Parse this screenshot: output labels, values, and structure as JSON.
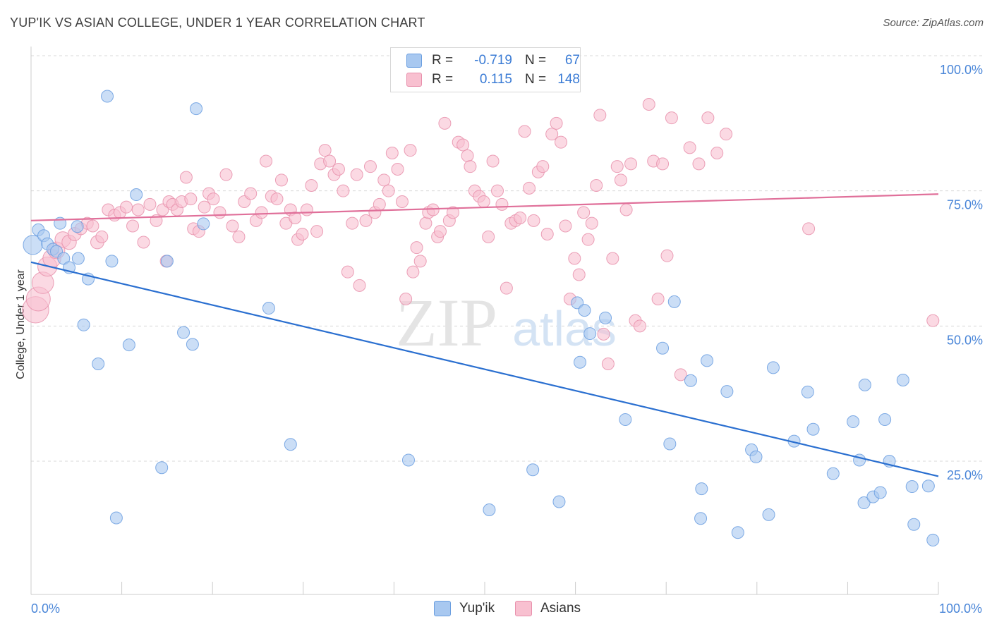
{
  "title": "YUP'IK VS ASIAN COLLEGE, UNDER 1 YEAR CORRELATION CHART",
  "source": "Source: ZipAtlas.com",
  "watermark": {
    "zip": "ZIP",
    "atlas": "atlas"
  },
  "legend": {
    "rows": [
      {
        "r_label": "R =",
        "r_value": "-0.719",
        "n_label": "N =",
        "n_value": "67",
        "color": "#a8c8f0",
        "border": "#6a9ee0"
      },
      {
        "r_label": "R =",
        "r_value": "0.115",
        "n_label": "N =",
        "n_value": "148",
        "color": "#f8c0d0",
        "border": "#e890ac"
      }
    ]
  },
  "bottom_legend": [
    {
      "label": "Yup'ik",
      "color": "#a8c8f0",
      "border": "#6a9ee0"
    },
    {
      "label": "Asians",
      "color": "#f8c0d0",
      "border": "#e890ac"
    }
  ],
  "chart_data": {
    "type": "scatter",
    "title": "YUP'IK VS ASIAN COLLEGE, UNDER 1 YEAR CORRELATION CHART",
    "xlabel": "",
    "ylabel": "College, Under 1 year",
    "xlim": [
      0,
      100
    ],
    "ylim": [
      0,
      105
    ],
    "x_tick_labels": [
      {
        "value": 0,
        "label": "0.0%"
      },
      {
        "value": 100,
        "label": "100.0%"
      }
    ],
    "y_tick_labels": [
      {
        "value": 25,
        "label": "25.0%"
      },
      {
        "value": 50,
        "label": "50.0%"
      },
      {
        "value": 75,
        "label": "75.0%"
      },
      {
        "value": 100,
        "label": "100.0%"
      }
    ],
    "grid": true,
    "legend_position": "top-center",
    "series": [
      {
        "name": "Yup'ik",
        "color": "#6a9ee0",
        "fill": "#a8c8f0",
        "trend": {
          "x": [
            0,
            100
          ],
          "y": [
            61.8,
            22.2
          ],
          "color": "#2a6fd0"
        },
        "points": [
          [
            0.2,
            65,
            1.6
          ],
          [
            0.8,
            67.8,
            1
          ],
          [
            1.4,
            66.7,
            1
          ],
          [
            1.8,
            65.2,
            1
          ],
          [
            2.4,
            64.2,
            1
          ],
          [
            2.8,
            63.8,
            1
          ],
          [
            3.2,
            69,
            1
          ],
          [
            3.6,
            62.5,
            1
          ],
          [
            4.2,
            60.8,
            1
          ],
          [
            5.2,
            62.5,
            1
          ],
          [
            6.3,
            58.7,
            1
          ],
          [
            5.1,
            68.4,
            1
          ],
          [
            5.8,
            50.2,
            1
          ],
          [
            7.4,
            43,
            1
          ],
          [
            8.4,
            92.5,
            1
          ],
          [
            8.9,
            62,
            1
          ],
          [
            9.4,
            14.5,
            1
          ],
          [
            10.8,
            46.5,
            1
          ],
          [
            11.6,
            74.3,
            1
          ],
          [
            14.4,
            23.8,
            1
          ],
          [
            15,
            62,
            1
          ],
          [
            16.8,
            48.8,
            1
          ],
          [
            17.8,
            46.6,
            1
          ],
          [
            18.2,
            90.2,
            1
          ],
          [
            19,
            68.9,
            1
          ],
          [
            26.2,
            53.3,
            1
          ],
          [
            28.6,
            28.1,
            1
          ],
          [
            41.6,
            25.2,
            1
          ],
          [
            50.5,
            16,
            1
          ],
          [
            55.3,
            23.4,
            1
          ],
          [
            58.2,
            17.5,
            1
          ],
          [
            60.2,
            54.3,
            1
          ],
          [
            60.5,
            43.3,
            1
          ],
          [
            61,
            52.9,
            1
          ],
          [
            61.6,
            48.6,
            1
          ],
          [
            63.3,
            51.5,
            1
          ],
          [
            65.5,
            32.7,
            1
          ],
          [
            69.6,
            45.9,
            1
          ],
          [
            70.4,
            28.2,
            1
          ],
          [
            70.9,
            54.5,
            1
          ],
          [
            72.7,
            39.9,
            1
          ],
          [
            73.9,
            19.9,
            1
          ],
          [
            73.8,
            14.4,
            1
          ],
          [
            74.5,
            43.6,
            1
          ],
          [
            76.7,
            37.9,
            1
          ],
          [
            77.9,
            11.8,
            1
          ],
          [
            79.4,
            27.1,
            1
          ],
          [
            79.9,
            25.8,
            1
          ],
          [
            81.3,
            15.1,
            1
          ],
          [
            81.8,
            42.3,
            1
          ],
          [
            84.1,
            28.7,
            1
          ],
          [
            85.6,
            37.8,
            1
          ],
          [
            86.2,
            30.9,
            1
          ],
          [
            88.4,
            22.7,
            1
          ],
          [
            90.6,
            32.3,
            1
          ],
          [
            91.3,
            25.2,
            1
          ],
          [
            91.8,
            17.3,
            1
          ],
          [
            91.9,
            39.1,
            1
          ],
          [
            92.8,
            18.4,
            1
          ],
          [
            93.6,
            19.2,
            1
          ],
          [
            94.1,
            32.7,
            1
          ],
          [
            94.6,
            25,
            1
          ],
          [
            96.1,
            40,
            1
          ],
          [
            97.1,
            20.3,
            1
          ],
          [
            97.3,
            13.3,
            1
          ],
          [
            98.9,
            20.4,
            1
          ],
          [
            99.4,
            10.4,
            1
          ]
        ]
      },
      {
        "name": "Asians",
        "color": "#e890ac",
        "fill": "#f8c0d0",
        "trend": {
          "x": [
            0,
            100
          ],
          "y": [
            69.5,
            74.4
          ],
          "color": "#e0709a"
        },
        "points": [
          [
            0.5,
            53,
            2.2
          ],
          [
            0.8,
            55,
            2.0
          ],
          [
            1.3,
            58,
            1.8
          ],
          [
            1.8,
            61,
            1.6
          ],
          [
            2.3,
            62.5,
            1.5
          ],
          [
            2.8,
            64,
            1.4
          ],
          [
            3.5,
            66,
            1.3
          ],
          [
            4.2,
            65.5,
            1.2
          ],
          [
            4.8,
            67,
            1.1
          ],
          [
            5.5,
            68,
            1
          ],
          [
            6.2,
            69,
            1
          ],
          [
            6.8,
            68.5,
            1
          ],
          [
            7.3,
            65.5,
            1.1
          ],
          [
            7.8,
            66.5,
            1
          ],
          [
            8.5,
            71.5,
            1
          ],
          [
            9.2,
            70.5,
            1
          ],
          [
            9.8,
            71,
            1
          ],
          [
            10.5,
            72,
            1
          ],
          [
            11.2,
            68.5,
            1
          ],
          [
            11.8,
            71.5,
            1
          ],
          [
            12.4,
            65.5,
            1
          ],
          [
            13.1,
            72.5,
            1
          ],
          [
            13.8,
            69.5,
            1
          ],
          [
            14.5,
            71.5,
            1
          ],
          [
            14.9,
            62,
            1
          ],
          [
            15.2,
            73,
            1
          ],
          [
            15.6,
            72.5,
            1
          ],
          [
            16.1,
            71.5,
            1
          ],
          [
            16.6,
            73,
            1
          ],
          [
            17.1,
            77.5,
            1
          ],
          [
            17.6,
            73.5,
            1
          ],
          [
            17.9,
            68,
            1
          ],
          [
            18.5,
            67.5,
            1
          ],
          [
            19.1,
            72,
            1
          ],
          [
            19.6,
            74.5,
            1
          ],
          [
            20.1,
            73.5,
            1
          ],
          [
            20.8,
            71,
            1
          ],
          [
            21.5,
            78,
            1
          ],
          [
            22.2,
            68.5,
            1
          ],
          [
            22.9,
            66.5,
            1
          ],
          [
            23.5,
            73,
            1
          ],
          [
            24.2,
            74.5,
            1
          ],
          [
            24.8,
            69.5,
            1
          ],
          [
            25.4,
            71,
            1
          ],
          [
            25.9,
            80.5,
            1
          ],
          [
            26.5,
            74,
            1
          ],
          [
            27.1,
            73.5,
            1
          ],
          [
            27.6,
            77,
            1
          ],
          [
            28.1,
            69,
            1
          ],
          [
            28.6,
            71.5,
            1
          ],
          [
            29.1,
            70,
            1
          ],
          [
            29.4,
            66,
            1
          ],
          [
            29.9,
            67,
            1
          ],
          [
            30.4,
            71.5,
            1
          ],
          [
            30.9,
            76,
            1
          ],
          [
            31.5,
            67.5,
            1
          ],
          [
            31.9,
            80,
            1
          ],
          [
            32.4,
            82.5,
            1
          ],
          [
            32.9,
            80.5,
            1
          ],
          [
            33.4,
            78,
            1
          ],
          [
            33.9,
            79,
            1
          ],
          [
            34.4,
            75,
            1
          ],
          [
            34.9,
            60,
            1
          ],
          [
            35.4,
            69,
            1
          ],
          [
            35.9,
            78,
            1
          ],
          [
            36.2,
            57.5,
            1
          ],
          [
            36.9,
            69.5,
            1
          ],
          [
            37.4,
            79.5,
            1
          ],
          [
            37.9,
            71,
            1
          ],
          [
            38.4,
            72.5,
            1
          ],
          [
            38.9,
            77,
            1
          ],
          [
            39.4,
            75,
            1
          ],
          [
            39.8,
            82,
            1
          ],
          [
            40.4,
            79,
            1
          ],
          [
            40.9,
            73,
            1
          ],
          [
            41.3,
            55,
            1
          ],
          [
            41.8,
            82.5,
            1
          ],
          [
            42.1,
            60,
            1
          ],
          [
            42.5,
            64.5,
            1
          ],
          [
            42.9,
            62,
            1
          ],
          [
            43.5,
            69,
            1
          ],
          [
            43.8,
            71,
            1
          ],
          [
            44.3,
            71.5,
            1
          ],
          [
            44.8,
            66.5,
            1
          ],
          [
            45.1,
            67.5,
            1
          ],
          [
            45.6,
            87.5,
            1
          ],
          [
            46.1,
            69.5,
            1
          ],
          [
            46.5,
            71,
            1
          ],
          [
            47.1,
            84,
            1
          ],
          [
            47.6,
            83.5,
            1
          ],
          [
            48.1,
            81.5,
            1
          ],
          [
            48.4,
            79.5,
            1
          ],
          [
            48.9,
            75,
            1
          ],
          [
            49.4,
            74,
            1
          ],
          [
            49.9,
            73,
            1
          ],
          [
            50.4,
            66.5,
            1
          ],
          [
            50.9,
            80.5,
            1
          ],
          [
            51.4,
            75,
            1
          ],
          [
            51.9,
            72.5,
            1
          ],
          [
            52.4,
            57,
            1
          ],
          [
            52.9,
            69,
            1
          ],
          [
            53.4,
            69.5,
            1
          ],
          [
            53.9,
            70,
            1
          ],
          [
            54.4,
            86,
            1
          ],
          [
            54.9,
            75.5,
            1
          ],
          [
            55.4,
            69.5,
            1
          ],
          [
            55.9,
            78.5,
            1
          ],
          [
            56.4,
            79.5,
            1
          ],
          [
            56.9,
            67,
            1
          ],
          [
            57.4,
            85.5,
            1
          ],
          [
            57.9,
            87.5,
            1
          ],
          [
            58.4,
            84,
            1
          ],
          [
            58.9,
            68.5,
            1
          ],
          [
            59.4,
            55,
            1
          ],
          [
            59.9,
            62.5,
            1
          ],
          [
            60.4,
            59.5,
            1
          ],
          [
            60.9,
            71,
            1
          ],
          [
            61.4,
            66,
            1
          ],
          [
            61.8,
            69,
            1
          ],
          [
            62.3,
            76,
            1
          ],
          [
            62.7,
            89,
            1
          ],
          [
            63.1,
            48.5,
            1
          ],
          [
            63.6,
            43,
            1
          ],
          [
            64.1,
            62.5,
            1
          ],
          [
            64.6,
            79.5,
            1
          ],
          [
            65,
            77,
            1
          ],
          [
            65.6,
            71.5,
            1
          ],
          [
            66.1,
            80,
            1
          ],
          [
            66.6,
            51,
            1
          ],
          [
            67.1,
            50,
            1
          ],
          [
            68.1,
            91,
            1
          ],
          [
            68.6,
            80.5,
            1
          ],
          [
            69.1,
            55,
            1
          ],
          [
            69.6,
            80,
            1
          ],
          [
            70.1,
            63,
            1
          ],
          [
            70.6,
            88.5,
            1
          ],
          [
            71.6,
            41,
            1
          ],
          [
            72.6,
            83,
            1
          ],
          [
            73.6,
            80,
            1
          ],
          [
            74.6,
            88.5,
            1
          ],
          [
            75.6,
            82,
            1
          ],
          [
            76.6,
            85.5,
            1
          ],
          [
            85.7,
            68,
            1
          ],
          [
            99.4,
            51,
            1
          ]
        ]
      }
    ]
  }
}
